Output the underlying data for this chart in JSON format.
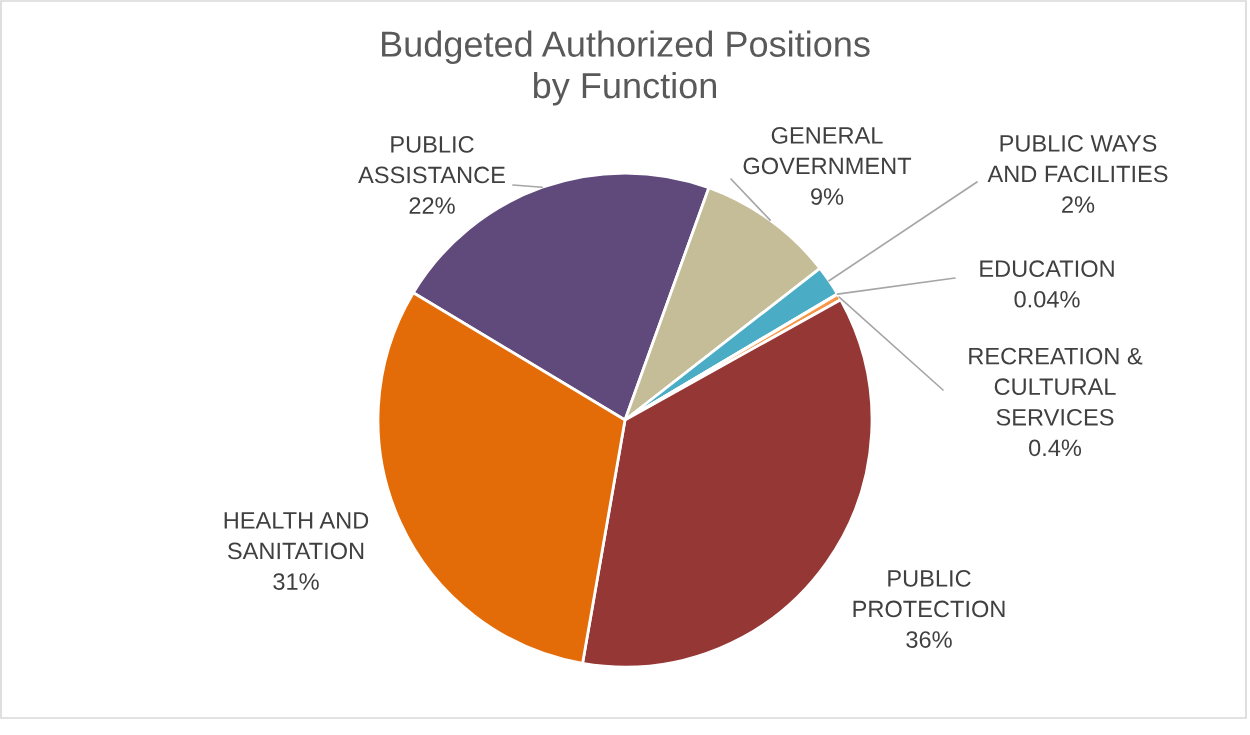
{
  "chart_data": {
    "type": "pie",
    "title": "Budgeted Authorized Positions\nby Function",
    "categories": [
      "PUBLIC\nASSISTANCE",
      "GENERAL\nGOVERNMENT",
      "PUBLIC WAYS\nAND FACILITIES",
      "EDUCATION",
      "RECREATION &\nCULTURAL\nSERVICES",
      "PUBLIC\nPROTECTION",
      "HEALTH AND\nSANITATION"
    ],
    "values": [
      22,
      9,
      2,
      0.04,
      0.4,
      36,
      31
    ],
    "colors": [
      "#604a7b",
      "#c4bd97",
      "#4bacc6",
      "#9bbb59",
      "#f79646",
      "#953735",
      "#e36c09"
    ],
    "value_labels": [
      "22%",
      "9%",
      "2%",
      "0.04%",
      "0.4%",
      "36%",
      "31%"
    ]
  }
}
